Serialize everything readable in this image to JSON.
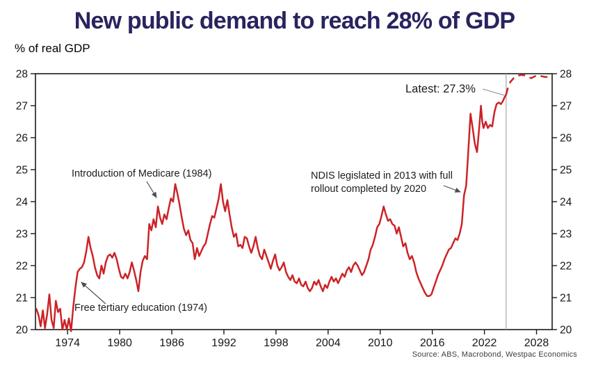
{
  "title": "New public demand to reach 28% of GDP",
  "subtitle": "% of real GDP",
  "source": "Source: ABS, Macrobond, Westpac Economics",
  "colors": {
    "title_navy": "#28245e",
    "line_red": "#cb2327",
    "axis_black": "#1a1a1a",
    "latest_marker_gray": "#a9a9a9",
    "annotation_arrow_gray": "#4d4d4d"
  },
  "annotations": {
    "medicare": "Introduction of Medicare (1984)",
    "free_tertiary": "Free tertiary education (1974)",
    "ndis_line1": "NDIS legislated in 2013 with full",
    "ndis_line2": "rollout completed by 2020",
    "latest": "Latest: 27.3%"
  },
  "chart_data": {
    "type": "line",
    "title": "New public demand to reach 28% of GDP",
    "xlabel": "",
    "ylabel": "% of real GDP",
    "xlim": [
      1970.3,
      2029.8
    ],
    "ylim": [
      20,
      28
    ],
    "x_ticks": [
      1974,
      1980,
      1986,
      1992,
      1998,
      2004,
      2010,
      2016,
      2022,
      2028
    ],
    "y_ticks": [
      20,
      21,
      22,
      23,
      24,
      25,
      26,
      27,
      28
    ],
    "grid": false,
    "legend": false,
    "latest_value": 27.3,
    "latest_marker_x": 2024.5,
    "series": [
      {
        "name": "New public demand, % of real GDP (actual, quarterly)",
        "style": "solid",
        "points": [
          [
            1970.4,
            20.65
          ],
          [
            1970.65,
            20.45
          ],
          [
            1970.9,
            20.1
          ],
          [
            1971.15,
            20.6
          ],
          [
            1971.4,
            20.05
          ],
          [
            1971.65,
            20.5
          ],
          [
            1971.9,
            21.1
          ],
          [
            1972.15,
            20.3
          ],
          [
            1972.4,
            20.05
          ],
          [
            1972.65,
            20.9
          ],
          [
            1972.9,
            20.55
          ],
          [
            1973.15,
            20.65
          ],
          [
            1973.4,
            20.0
          ],
          [
            1973.65,
            20.3
          ],
          [
            1973.9,
            20.0
          ],
          [
            1974.15,
            20.35
          ],
          [
            1974.4,
            19.95
          ],
          [
            1974.65,
            20.7
          ],
          [
            1974.9,
            21.3
          ],
          [
            1975.15,
            21.8
          ],
          [
            1975.4,
            21.9
          ],
          [
            1975.65,
            21.95
          ],
          [
            1975.9,
            22.1
          ],
          [
            1976.15,
            22.45
          ],
          [
            1976.4,
            22.9
          ],
          [
            1976.65,
            22.55
          ],
          [
            1976.9,
            22.3
          ],
          [
            1977.15,
            21.95
          ],
          [
            1977.4,
            21.7
          ],
          [
            1977.65,
            21.6
          ],
          [
            1977.9,
            22.0
          ],
          [
            1978.15,
            21.75
          ],
          [
            1978.4,
            22.1
          ],
          [
            1978.65,
            22.3
          ],
          [
            1978.9,
            22.35
          ],
          [
            1979.15,
            22.25
          ],
          [
            1979.4,
            22.4
          ],
          [
            1979.65,
            22.2
          ],
          [
            1979.9,
            21.9
          ],
          [
            1980.15,
            21.65
          ],
          [
            1980.4,
            21.6
          ],
          [
            1980.65,
            21.75
          ],
          [
            1980.9,
            21.6
          ],
          [
            1981.15,
            21.8
          ],
          [
            1981.4,
            22.1
          ],
          [
            1981.65,
            21.85
          ],
          [
            1981.9,
            21.55
          ],
          [
            1982.15,
            21.2
          ],
          [
            1982.4,
            21.8
          ],
          [
            1982.65,
            22.15
          ],
          [
            1982.9,
            22.3
          ],
          [
            1983.15,
            22.2
          ],
          [
            1983.4,
            23.3
          ],
          [
            1983.65,
            23.1
          ],
          [
            1983.9,
            23.45
          ],
          [
            1984.15,
            23.2
          ],
          [
            1984.4,
            23.85
          ],
          [
            1984.65,
            23.5
          ],
          [
            1984.9,
            23.3
          ],
          [
            1985.15,
            23.6
          ],
          [
            1985.4,
            23.45
          ],
          [
            1985.65,
            23.8
          ],
          [
            1985.9,
            24.1
          ],
          [
            1986.15,
            24.0
          ],
          [
            1986.4,
            24.55
          ],
          [
            1986.65,
            24.25
          ],
          [
            1986.9,
            23.9
          ],
          [
            1987.15,
            23.5
          ],
          [
            1987.4,
            23.15
          ],
          [
            1987.65,
            22.95
          ],
          [
            1987.9,
            23.1
          ],
          [
            1988.15,
            22.8
          ],
          [
            1988.4,
            22.7
          ],
          [
            1988.65,
            22.2
          ],
          [
            1988.9,
            22.55
          ],
          [
            1989.15,
            22.3
          ],
          [
            1989.4,
            22.45
          ],
          [
            1989.65,
            22.6
          ],
          [
            1989.9,
            22.7
          ],
          [
            1990.15,
            23.0
          ],
          [
            1990.4,
            23.3
          ],
          [
            1990.65,
            23.55
          ],
          [
            1990.9,
            23.5
          ],
          [
            1991.15,
            23.8
          ],
          [
            1991.4,
            24.1
          ],
          [
            1991.65,
            24.55
          ],
          [
            1991.9,
            24.0
          ],
          [
            1992.15,
            23.7
          ],
          [
            1992.4,
            24.05
          ],
          [
            1992.65,
            23.6
          ],
          [
            1992.9,
            23.2
          ],
          [
            1993.15,
            22.9
          ],
          [
            1993.4,
            23.0
          ],
          [
            1993.65,
            22.6
          ],
          [
            1993.9,
            22.65
          ],
          [
            1994.15,
            22.55
          ],
          [
            1994.4,
            22.9
          ],
          [
            1994.65,
            22.85
          ],
          [
            1994.9,
            22.6
          ],
          [
            1995.15,
            22.4
          ],
          [
            1995.4,
            22.6
          ],
          [
            1995.65,
            22.9
          ],
          [
            1995.9,
            22.55
          ],
          [
            1996.15,
            22.3
          ],
          [
            1996.4,
            22.2
          ],
          [
            1996.65,
            22.5
          ],
          [
            1996.9,
            22.3
          ],
          [
            1997.15,
            22.1
          ],
          [
            1997.4,
            21.9
          ],
          [
            1997.65,
            22.15
          ],
          [
            1997.9,
            22.35
          ],
          [
            1998.15,
            22.0
          ],
          [
            1998.4,
            21.85
          ],
          [
            1998.65,
            21.95
          ],
          [
            1998.9,
            22.1
          ],
          [
            1999.15,
            21.8
          ],
          [
            1999.4,
            21.65
          ],
          [
            1999.65,
            21.55
          ],
          [
            1999.9,
            21.7
          ],
          [
            2000.15,
            21.5
          ],
          [
            2000.4,
            21.45
          ],
          [
            2000.65,
            21.6
          ],
          [
            2000.9,
            21.4
          ],
          [
            2001.15,
            21.35
          ],
          [
            2001.4,
            21.5
          ],
          [
            2001.65,
            21.3
          ],
          [
            2001.9,
            21.2
          ],
          [
            2002.15,
            21.3
          ],
          [
            2002.4,
            21.5
          ],
          [
            2002.65,
            21.4
          ],
          [
            2002.9,
            21.55
          ],
          [
            2003.15,
            21.35
          ],
          [
            2003.4,
            21.2
          ],
          [
            2003.65,
            21.4
          ],
          [
            2003.9,
            21.3
          ],
          [
            2004.15,
            21.5
          ],
          [
            2004.4,
            21.65
          ],
          [
            2004.65,
            21.5
          ],
          [
            2004.9,
            21.6
          ],
          [
            2005.15,
            21.45
          ],
          [
            2005.4,
            21.6
          ],
          [
            2005.65,
            21.75
          ],
          [
            2005.9,
            21.65
          ],
          [
            2006.15,
            21.85
          ],
          [
            2006.4,
            21.95
          ],
          [
            2006.65,
            21.8
          ],
          [
            2006.9,
            22.0
          ],
          [
            2007.15,
            22.1
          ],
          [
            2007.4,
            22.0
          ],
          [
            2007.65,
            21.85
          ],
          [
            2007.9,
            21.7
          ],
          [
            2008.15,
            21.8
          ],
          [
            2008.4,
            22.0
          ],
          [
            2008.65,
            22.2
          ],
          [
            2008.9,
            22.5
          ],
          [
            2009.15,
            22.65
          ],
          [
            2009.4,
            22.9
          ],
          [
            2009.65,
            23.2
          ],
          [
            2009.9,
            23.3
          ],
          [
            2010.15,
            23.55
          ],
          [
            2010.4,
            23.85
          ],
          [
            2010.65,
            23.6
          ],
          [
            2010.9,
            23.4
          ],
          [
            2011.15,
            23.45
          ],
          [
            2011.4,
            23.3
          ],
          [
            2011.65,
            23.25
          ],
          [
            2011.9,
            23.0
          ],
          [
            2012.15,
            23.2
          ],
          [
            2012.4,
            22.9
          ],
          [
            2012.65,
            22.6
          ],
          [
            2012.9,
            22.7
          ],
          [
            2013.15,
            22.4
          ],
          [
            2013.4,
            22.2
          ],
          [
            2013.65,
            22.3
          ],
          [
            2013.9,
            22.1
          ],
          [
            2014.15,
            21.8
          ],
          [
            2014.4,
            21.6
          ],
          [
            2014.65,
            21.45
          ],
          [
            2014.9,
            21.3
          ],
          [
            2015.15,
            21.15
          ],
          [
            2015.4,
            21.05
          ],
          [
            2015.65,
            21.05
          ],
          [
            2015.9,
            21.1
          ],
          [
            2016.15,
            21.3
          ],
          [
            2016.4,
            21.5
          ],
          [
            2016.65,
            21.7
          ],
          [
            2016.9,
            21.85
          ],
          [
            2017.15,
            22.0
          ],
          [
            2017.4,
            22.2
          ],
          [
            2017.65,
            22.35
          ],
          [
            2017.9,
            22.5
          ],
          [
            2018.15,
            22.55
          ],
          [
            2018.4,
            22.7
          ],
          [
            2018.65,
            22.85
          ],
          [
            2018.9,
            22.8
          ],
          [
            2019.15,
            23.0
          ],
          [
            2019.4,
            23.3
          ],
          [
            2019.65,
            24.2
          ],
          [
            2019.9,
            24.5
          ],
          [
            2020.15,
            25.6
          ],
          [
            2020.4,
            26.75
          ],
          [
            2020.65,
            26.3
          ],
          [
            2020.9,
            25.8
          ],
          [
            2021.15,
            25.55
          ],
          [
            2021.4,
            26.3
          ],
          [
            2021.6,
            27.0
          ],
          [
            2021.75,
            26.5
          ],
          [
            2021.9,
            26.3
          ],
          [
            2022.15,
            26.5
          ],
          [
            2022.4,
            26.3
          ],
          [
            2022.65,
            26.4
          ],
          [
            2022.9,
            26.35
          ],
          [
            2023.15,
            26.8
          ],
          [
            2023.4,
            27.05
          ],
          [
            2023.65,
            27.1
          ],
          [
            2023.9,
            27.05
          ],
          [
            2024.15,
            27.15
          ],
          [
            2024.3,
            27.25
          ],
          [
            2024.5,
            27.35
          ]
        ]
      },
      {
        "name": "Westpac Economics forecast",
        "style": "dashed",
        "points": [
          [
            2024.5,
            27.35
          ],
          [
            2024.75,
            27.6
          ],
          [
            2025.0,
            27.75
          ],
          [
            2025.4,
            27.87
          ],
          [
            2025.8,
            27.93
          ],
          [
            2026.2,
            27.96
          ],
          [
            2026.6,
            27.95
          ],
          [
            2027.0,
            27.9
          ],
          [
            2027.4,
            27.86
          ],
          [
            2027.8,
            27.92
          ],
          [
            2028.2,
            27.95
          ],
          [
            2028.6,
            27.92
          ],
          [
            2029.0,
            27.9
          ],
          [
            2029.5,
            27.9
          ]
        ]
      }
    ]
  }
}
